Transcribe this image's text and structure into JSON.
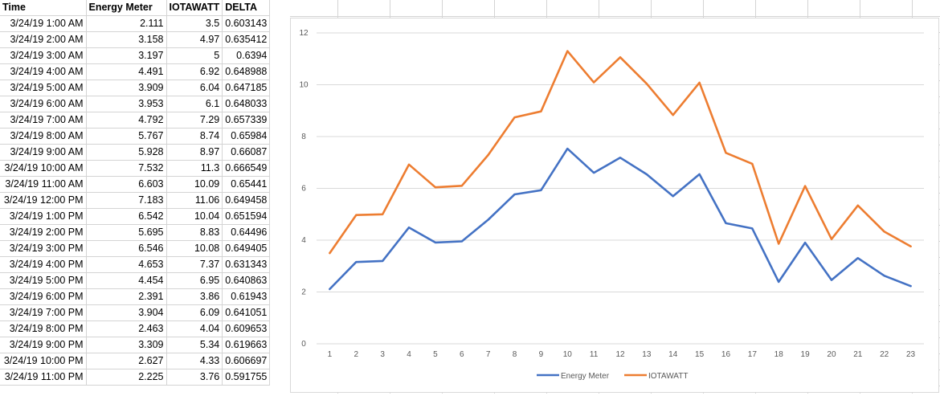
{
  "sheet": {
    "headers": [
      "Time",
      "Energy Meter",
      "IOTAWATT",
      "DELTA"
    ],
    "rows": [
      [
        "3/24/19 1:00 AM",
        "2.111",
        "3.5",
        "0.603143"
      ],
      [
        "3/24/19 2:00 AM",
        "3.158",
        "4.97",
        "0.635412"
      ],
      [
        "3/24/19 3:00 AM",
        "3.197",
        "5",
        "0.6394"
      ],
      [
        "3/24/19 4:00 AM",
        "4.491",
        "6.92",
        "0.648988"
      ],
      [
        "3/24/19 5:00 AM",
        "3.909",
        "6.04",
        "0.647185"
      ],
      [
        "3/24/19 6:00 AM",
        "3.953",
        "6.1",
        "0.648033"
      ],
      [
        "3/24/19 7:00 AM",
        "4.792",
        "7.29",
        "0.657339"
      ],
      [
        "3/24/19 8:00 AM",
        "5.767",
        "8.74",
        "0.65984"
      ],
      [
        "3/24/19 9:00 AM",
        "5.928",
        "8.97",
        "0.66087"
      ],
      [
        "3/24/19 10:00 AM",
        "7.532",
        "11.3",
        "0.666549"
      ],
      [
        "3/24/19 11:00 AM",
        "6.603",
        "10.09",
        "0.65441"
      ],
      [
        "3/24/19 12:00 PM",
        "7.183",
        "11.06",
        "0.649458"
      ],
      [
        "3/24/19 1:00 PM",
        "6.542",
        "10.04",
        "0.651594"
      ],
      [
        "3/24/19 2:00 PM",
        "5.695",
        "8.83",
        "0.64496"
      ],
      [
        "3/24/19 3:00 PM",
        "6.546",
        "10.08",
        "0.649405"
      ],
      [
        "3/24/19 4:00 PM",
        "4.653",
        "7.37",
        "0.631343"
      ],
      [
        "3/24/19 5:00 PM",
        "4.454",
        "6.95",
        "0.640863"
      ],
      [
        "3/24/19 6:00 PM",
        "2.391",
        "3.86",
        "0.61943"
      ],
      [
        "3/24/19 7:00 PM",
        "3.904",
        "6.09",
        "0.641051"
      ],
      [
        "3/24/19 8:00 PM",
        "2.463",
        "4.04",
        "0.609653"
      ],
      [
        "3/24/19 9:00 PM",
        "3.309",
        "5.34",
        "0.619663"
      ],
      [
        "3/24/19 10:00 PM",
        "2.627",
        "4.33",
        "0.606697"
      ],
      [
        "3/24/19 11:00 PM",
        "2.225",
        "3.76",
        "0.591755"
      ]
    ]
  },
  "chart_data": {
    "type": "line",
    "x": [
      1,
      2,
      3,
      4,
      5,
      6,
      7,
      8,
      9,
      10,
      11,
      12,
      13,
      14,
      15,
      16,
      17,
      18,
      19,
      20,
      21,
      22,
      23
    ],
    "series": [
      {
        "name": "Energy Meter",
        "color": "#4472c4",
        "values": [
          2.111,
          3.158,
          3.197,
          4.491,
          3.909,
          3.953,
          4.792,
          5.767,
          5.928,
          7.532,
          6.603,
          7.183,
          6.542,
          5.695,
          6.546,
          4.653,
          4.454,
          2.391,
          3.904,
          2.463,
          3.309,
          2.627,
          2.225
        ]
      },
      {
        "name": "IOTAWATT",
        "color": "#ed7d31",
        "values": [
          3.5,
          4.97,
          5,
          6.92,
          6.04,
          6.1,
          7.29,
          8.74,
          8.97,
          11.3,
          10.09,
          11.06,
          10.04,
          8.83,
          10.08,
          7.37,
          6.95,
          3.86,
          6.09,
          4.04,
          5.34,
          4.33,
          3.76
        ]
      }
    ],
    "yticks": [
      "0",
      "2",
      "4",
      "6",
      "8",
      "10",
      "12"
    ],
    "ylim": [
      0,
      12
    ],
    "grid": true,
    "legend": "bottom"
  }
}
